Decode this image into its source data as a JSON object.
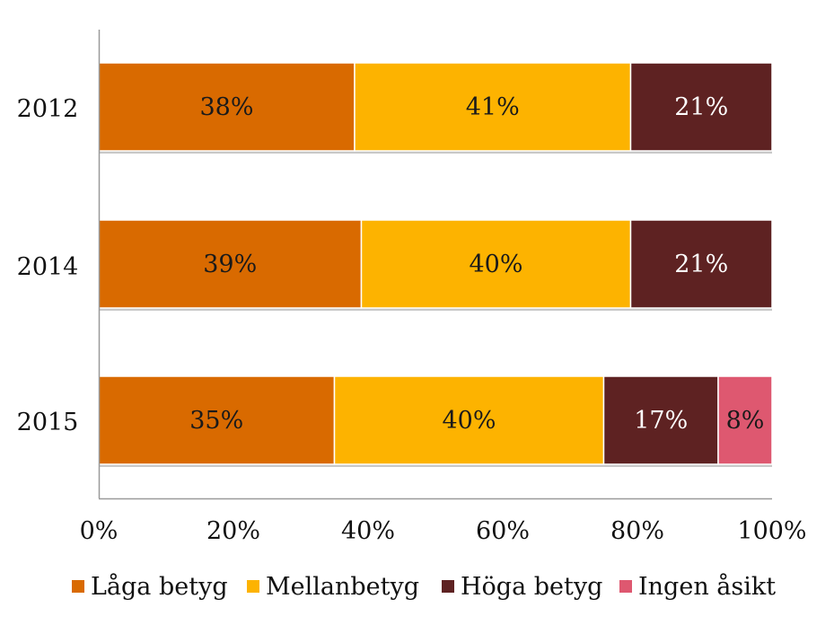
{
  "chart_data": {
    "type": "bar",
    "orientation": "horizontal",
    "stacked": true,
    "percent": true,
    "categories": [
      "2012",
      "2014",
      "2015"
    ],
    "series": [
      {
        "name": "Låga betyg",
        "color": "#D96A00",
        "values": [
          38,
          39,
          35
        ],
        "labels": [
          "38%",
          "39%",
          "35%"
        ]
      },
      {
        "name": "Mellanbetyg",
        "color": "#FDB300",
        "values": [
          41,
          40,
          40
        ],
        "labels": [
          "41%",
          "40%",
          "40%"
        ]
      },
      {
        "name": "Höga betyg",
        "color": "#5E2222",
        "values": [
          21,
          21,
          17
        ],
        "labels": [
          "21%",
          "21%",
          "17%"
        ]
      },
      {
        "name": "Ingen åsikt",
        "color": "#DE5870",
        "values": [
          0,
          0,
          8
        ],
        "labels": [
          "",
          "",
          "8%"
        ]
      }
    ],
    "xlim": [
      0,
      100
    ],
    "xticks": [
      "0%",
      "20%",
      "40%",
      "60%",
      "80%",
      "100%"
    ],
    "legend_position": "bottom",
    "grid": false
  }
}
